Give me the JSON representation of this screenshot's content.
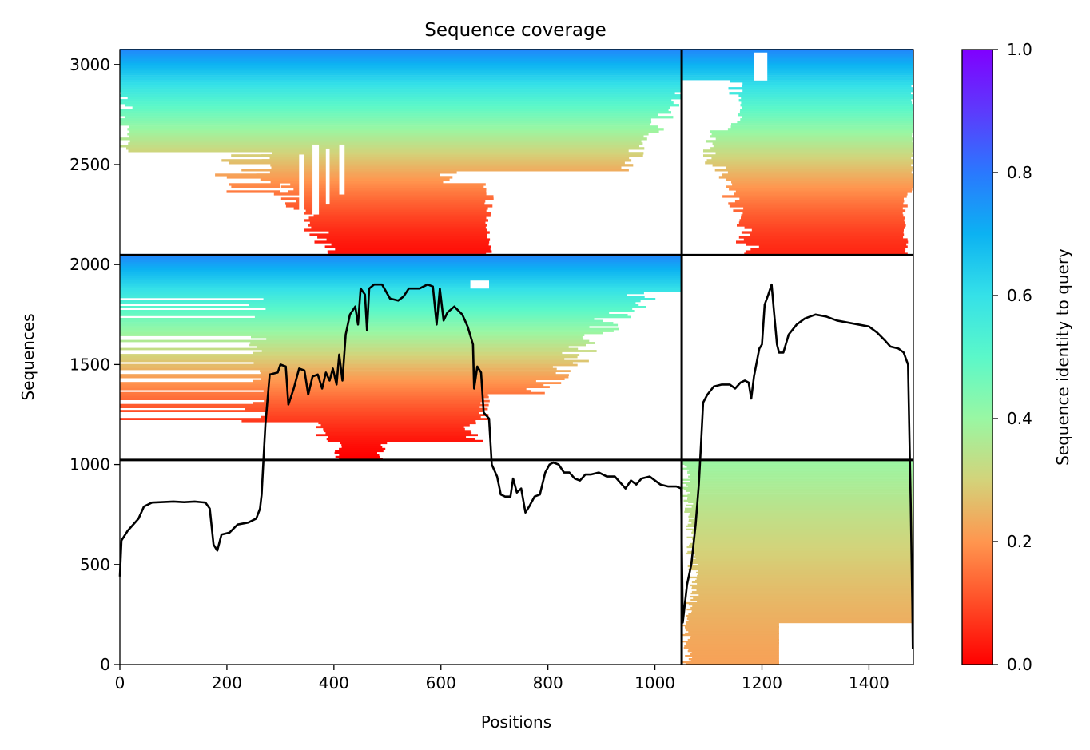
{
  "chart_data": {
    "type": "heatmap",
    "title": "Sequence coverage",
    "xlabel": "Positions",
    "ylabel": "Sequences",
    "xlim": [
      0,
      1483
    ],
    "ylim": [
      0,
      3075
    ],
    "xticks": [
      0,
      200,
      400,
      600,
      800,
      1000,
      1200,
      1400
    ],
    "yticks": [
      0,
      500,
      1000,
      1500,
      2000,
      2500,
      3000
    ],
    "colorbar": {
      "label": "Sequence identity to query",
      "range": [
        0,
        1
      ],
      "ticks": [
        "0.0",
        "0.2",
        "0.4",
        "0.6",
        "0.8",
        "1.0"
      ],
      "colormap": "rainbow_r"
    },
    "block_boundaries": {
      "positions": [
        1050
      ],
      "sequences": [
        1023,
        2047
      ]
    },
    "coverage_line": [
      [
        0,
        440
      ],
      [
        3,
        620
      ],
      [
        15,
        670
      ],
      [
        25,
        700
      ],
      [
        35,
        730
      ],
      [
        45,
        790
      ],
      [
        60,
        810
      ],
      [
        100,
        815
      ],
      [
        120,
        812
      ],
      [
        140,
        815
      ],
      [
        160,
        810
      ],
      [
        168,
        780
      ],
      [
        175,
        600
      ],
      [
        182,
        570
      ],
      [
        190,
        650
      ],
      [
        205,
        660
      ],
      [
        220,
        700
      ],
      [
        240,
        710
      ],
      [
        255,
        730
      ],
      [
        262,
        780
      ],
      [
        265,
        850
      ],
      [
        268,
        1000
      ],
      [
        272,
        1200
      ],
      [
        280,
        1450
      ],
      [
        295,
        1460
      ],
      [
        300,
        1500
      ],
      [
        310,
        1490
      ],
      [
        315,
        1300
      ],
      [
        325,
        1380
      ],
      [
        335,
        1480
      ],
      [
        345,
        1470
      ],
      [
        352,
        1350
      ],
      [
        360,
        1440
      ],
      [
        370,
        1450
      ],
      [
        378,
        1380
      ],
      [
        385,
        1460
      ],
      [
        392,
        1420
      ],
      [
        398,
        1480
      ],
      [
        405,
        1400
      ],
      [
        410,
        1550
      ],
      [
        416,
        1420
      ],
      [
        422,
        1650
      ],
      [
        430,
        1750
      ],
      [
        440,
        1790
      ],
      [
        445,
        1700
      ],
      [
        450,
        1880
      ],
      [
        458,
        1850
      ],
      [
        462,
        1670
      ],
      [
        466,
        1880
      ],
      [
        475,
        1900
      ],
      [
        490,
        1900
      ],
      [
        505,
        1830
      ],
      [
        520,
        1820
      ],
      [
        530,
        1840
      ],
      [
        540,
        1880
      ],
      [
        560,
        1880
      ],
      [
        575,
        1900
      ],
      [
        585,
        1890
      ],
      [
        592,
        1700
      ],
      [
        598,
        1880
      ],
      [
        605,
        1720
      ],
      [
        612,
        1760
      ],
      [
        625,
        1790
      ],
      [
        640,
        1750
      ],
      [
        650,
        1690
      ],
      [
        660,
        1600
      ],
      [
        662,
        1380
      ],
      [
        668,
        1490
      ],
      [
        675,
        1460
      ],
      [
        680,
        1260
      ],
      [
        690,
        1230
      ],
      [
        695,
        1000
      ],
      [
        705,
        940
      ],
      [
        712,
        850
      ],
      [
        720,
        840
      ],
      [
        730,
        840
      ],
      [
        735,
        930
      ],
      [
        742,
        860
      ],
      [
        750,
        880
      ],
      [
        758,
        760
      ],
      [
        765,
        790
      ],
      [
        775,
        840
      ],
      [
        785,
        850
      ],
      [
        795,
        960
      ],
      [
        803,
        1000
      ],
      [
        810,
        1010
      ],
      [
        820,
        1000
      ],
      [
        830,
        960
      ],
      [
        840,
        960
      ],
      [
        850,
        930
      ],
      [
        860,
        920
      ],
      [
        870,
        950
      ],
      [
        880,
        950
      ],
      [
        895,
        960
      ],
      [
        910,
        940
      ],
      [
        925,
        940
      ],
      [
        935,
        910
      ],
      [
        945,
        880
      ],
      [
        955,
        920
      ],
      [
        965,
        900
      ],
      [
        975,
        930
      ],
      [
        990,
        940
      ],
      [
        1000,
        920
      ],
      [
        1010,
        900
      ],
      [
        1025,
        890
      ],
      [
        1040,
        890
      ],
      [
        1049,
        880
      ],
      [
        1052,
        210
      ],
      [
        1060,
        400
      ],
      [
        1068,
        500
      ],
      [
        1076,
        700
      ],
      [
        1082,
        900
      ],
      [
        1086,
        1100
      ],
      [
        1090,
        1310
      ],
      [
        1098,
        1350
      ],
      [
        1110,
        1390
      ],
      [
        1125,
        1400
      ],
      [
        1140,
        1400
      ],
      [
        1150,
        1380
      ],
      [
        1160,
        1410
      ],
      [
        1168,
        1420
      ],
      [
        1175,
        1410
      ],
      [
        1180,
        1330
      ],
      [
        1185,
        1440
      ],
      [
        1195,
        1580
      ],
      [
        1200,
        1600
      ],
      [
        1205,
        1800
      ],
      [
        1212,
        1850
      ],
      [
        1218,
        1900
      ],
      [
        1222,
        1780
      ],
      [
        1228,
        1600
      ],
      [
        1232,
        1560
      ],
      [
        1240,
        1560
      ],
      [
        1250,
        1650
      ],
      [
        1265,
        1700
      ],
      [
        1280,
        1730
      ],
      [
        1300,
        1750
      ],
      [
        1320,
        1740
      ],
      [
        1340,
        1720
      ],
      [
        1360,
        1710
      ],
      [
        1380,
        1700
      ],
      [
        1400,
        1690
      ],
      [
        1415,
        1660
      ],
      [
        1430,
        1620
      ],
      [
        1440,
        1590
      ],
      [
        1455,
        1580
      ],
      [
        1465,
        1560
      ],
      [
        1473,
        1500
      ],
      [
        1478,
        800
      ],
      [
        1481,
        300
      ],
      [
        1482,
        80
      ]
    ]
  }
}
